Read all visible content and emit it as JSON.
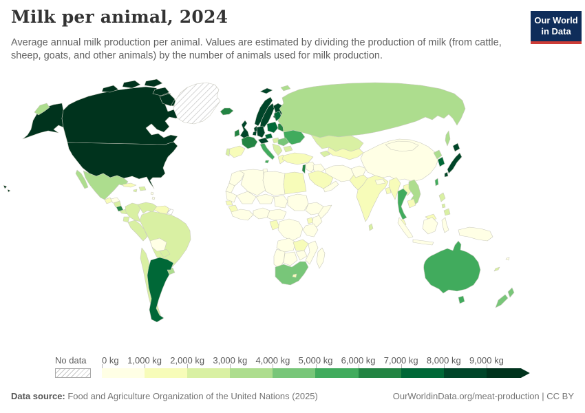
{
  "header": {
    "title": "Milk per animal, 2024",
    "subtitle": "Average annual milk production per animal. Values are estimated by dividing the production of milk (from cattle, sheep, goats, and other animals) by the number of animals used for milk production.",
    "logo": {
      "line1": "Our World",
      "line2": "in Data"
    }
  },
  "legend": {
    "no_data_label": "No data",
    "ticks": [
      "0 kg",
      "1,000 kg",
      "2,000 kg",
      "3,000 kg",
      "4,000 kg",
      "5,000 kg",
      "6,000 kg",
      "7,000 kg",
      "8,000 kg",
      "9,000 kg"
    ],
    "colors": [
      "#ffffe5",
      "#f7fcb9",
      "#d9f0a3",
      "#addd8e",
      "#78c679",
      "#41ab5d",
      "#238443",
      "#006837",
      "#004529"
    ],
    "arrow_color": "#00331d"
  },
  "footer": {
    "source_label": "Data source:",
    "source_text": " Food and Agriculture Organization of the United Nations (2025)",
    "link_text": "OurWorldinData.org/meat-production | CC BY"
  },
  "chart_data": {
    "type": "choropleth",
    "title": "Milk per animal, 2024",
    "unit": "kg",
    "legend_position": "bottom",
    "bins": [
      {
        "range": "0–1,000 kg",
        "color": "#ffffe5"
      },
      {
        "range": "1,000–2,000 kg",
        "color": "#f7fcb9"
      },
      {
        "range": "2,000–3,000 kg",
        "color": "#d9f0a3"
      },
      {
        "range": "3,000–4,000 kg",
        "color": "#addd8e"
      },
      {
        "range": "4,000–5,000 kg",
        "color": "#78c679"
      },
      {
        "range": "5,000–6,000 kg",
        "color": "#41ab5d"
      },
      {
        "range": "6,000–7,000 kg",
        "color": "#238443"
      },
      {
        "range": "7,000–8,000 kg",
        "color": "#006837"
      },
      {
        "range": "8,000–9,000 kg",
        "color": "#004529"
      },
      {
        "range": "> 9,000 kg",
        "color": "#00331d"
      },
      {
        "range": "No data",
        "color": "hatch"
      }
    ],
    "regions": [
      {
        "id": "usa",
        "name": "United States",
        "range": "> 9,000 kg",
        "color": "#00331d"
      },
      {
        "id": "canada",
        "name": "Canada",
        "range": "> 9,000 kg",
        "color": "#00331d"
      },
      {
        "id": "greenland",
        "name": "Greenland",
        "range": "No data",
        "color": "no-data"
      },
      {
        "id": "french-guiana",
        "name": "French Guiana",
        "range": "No data",
        "color": "no-data"
      },
      {
        "id": "uk",
        "name": "United Kingdom",
        "range": "8,000–9,000 kg",
        "color": "#004529"
      },
      {
        "id": "norway",
        "name": "Norway",
        "range": "8,000–9,000 kg",
        "color": "#004529"
      },
      {
        "id": "sweden",
        "name": "Sweden",
        "range": "8,000–9,000 kg",
        "color": "#004529"
      },
      {
        "id": "finland",
        "name": "Finland",
        "range": "8,000–9,000 kg",
        "color": "#004529"
      },
      {
        "id": "denmark",
        "name": "Denmark",
        "range": "8,000–9,000 kg",
        "color": "#004529"
      },
      {
        "id": "germany",
        "name": "Germany",
        "range": "8,000–9,000 kg",
        "color": "#004529"
      },
      {
        "id": "benelux",
        "name": "Belgium & Netherlands",
        "range": "8,000–9,000 kg",
        "color": "#004529"
      },
      {
        "id": "alpine",
        "name": "Switzerland & Austria",
        "range": "8,000–9,000 kg",
        "color": "#004529"
      },
      {
        "id": "japan",
        "name": "Japan",
        "range": "8,000–9,000 kg",
        "color": "#004529"
      },
      {
        "id": "poland",
        "name": "Poland",
        "range": "7,000–8,000 kg",
        "color": "#006837"
      },
      {
        "id": "baltics",
        "name": "Baltic states",
        "range": "7,000–8,000 kg",
        "color": "#006837"
      },
      {
        "id": "czech",
        "name": "Czechia",
        "range": "7,000–8,000 kg",
        "color": "#006837"
      },
      {
        "id": "south-korea",
        "name": "South Korea",
        "range": "7,000–8,000 kg",
        "color": "#006837"
      },
      {
        "id": "argentina",
        "name": "Argentina",
        "range": "7,000–8,000 kg",
        "color": "#006837"
      },
      {
        "id": "france",
        "name": "France",
        "range": "6,000–7,000 kg",
        "color": "#238443"
      },
      {
        "id": "ireland",
        "name": "Ireland",
        "range": "6,000–7,000 kg",
        "color": "#238443"
      },
      {
        "id": "iceland",
        "name": "Iceland",
        "range": "6,000–7,000 kg",
        "color": "#238443"
      },
      {
        "id": "belarus",
        "name": "Belarus",
        "range": "6,000–7,000 kg",
        "color": "#238443"
      },
      {
        "id": "costa-rica",
        "name": "Costa Rica",
        "range": "6,000–7,000 kg",
        "color": "#238443"
      },
      {
        "id": "israel",
        "name": "Israel",
        "range": "6,000–7,000 kg",
        "color": "#238443"
      },
      {
        "id": "italy",
        "name": "Italy",
        "range": "5,000–6,000 kg",
        "color": "#41ab5d"
      },
      {
        "id": "ukraine",
        "name": "Ukraine",
        "range": "5,000–6,000 kg",
        "color": "#41ab5d"
      },
      {
        "id": "thailand",
        "name": "Thailand",
        "range": "5,000–6,000 kg",
        "color": "#41ab5d"
      },
      {
        "id": "taiwan",
        "name": "Taiwan",
        "range": "5,000–6,000 kg",
        "color": "#41ab5d"
      },
      {
        "id": "australia",
        "name": "Australia",
        "range": "5,000–6,000 kg",
        "color": "#41ab5d"
      },
      {
        "id": "romania",
        "name": "Romania",
        "range": "4,000–5,000 kg",
        "color": "#78c679"
      },
      {
        "id": "south-africa",
        "name": "South Africa",
        "range": "4,000–5,000 kg",
        "color": "#78c679"
      },
      {
        "id": "new-zealand",
        "name": "New Zealand",
        "range": "4,000–5,000 kg",
        "color": "#78c679"
      },
      {
        "id": "mexico",
        "name": "Mexico",
        "range": "3,000–4,000 kg",
        "color": "#addd8e"
      },
      {
        "id": "russia",
        "name": "Russia",
        "range": "3,000–4,000 kg",
        "color": "#addd8e"
      },
      {
        "id": "north-korea",
        "name": "North Korea",
        "range": "3,000–4,000 kg",
        "color": "#addd8e"
      },
      {
        "id": "vietnam",
        "name": "Vietnam",
        "range": "3,000–4,000 kg",
        "color": "#addd8e"
      },
      {
        "id": "uruguay",
        "name": "Uruguay",
        "range": "3,000–4,000 kg",
        "color": "#addd8e"
      },
      {
        "id": "kazakhstan",
        "name": "Kazakhstan",
        "range": "2,000–3,000 kg",
        "color": "#d9f0a3"
      },
      {
        "id": "colombia",
        "name": "Colombia",
        "range": "2,000–3,000 kg",
        "color": "#d9f0a3"
      },
      {
        "id": "venezuela",
        "name": "Venezuela",
        "range": "2,000–3,000 kg",
        "color": "#d9f0a3"
      },
      {
        "id": "ecuador",
        "name": "Ecuador",
        "range": "2,000–3,000 kg",
        "color": "#d9f0a3"
      },
      {
        "id": "peru",
        "name": "Peru",
        "range": "2,000–3,000 kg",
        "color": "#d9f0a3"
      },
      {
        "id": "brazil",
        "name": "Brazil",
        "range": "2,000–3,000 kg",
        "color": "#d9f0a3"
      },
      {
        "id": "chile",
        "name": "Chile",
        "range": "2,000–3,000 kg",
        "color": "#d9f0a3"
      },
      {
        "id": "paraguay",
        "name": "Paraguay",
        "range": "2,000–3,000 kg",
        "color": "#d9f0a3"
      },
      {
        "id": "nicaragua",
        "name": "Nicaragua",
        "range": "2,000–3,000 kg",
        "color": "#d9f0a3"
      },
      {
        "id": "panama",
        "name": "Panama",
        "range": "2,000–3,000 kg",
        "color": "#d9f0a3"
      },
      {
        "id": "hispaniola",
        "name": "Dominican Republic & Haiti",
        "range": "2,000–3,000 kg",
        "color": "#d9f0a3"
      },
      {
        "id": "jamaica",
        "name": "Jamaica",
        "range": "2,000–3,000 kg",
        "color": "#d9f0a3"
      },
      {
        "id": "portugal",
        "name": "Portugal",
        "range": "2,000–3,000 kg",
        "color": "#d9f0a3"
      },
      {
        "id": "balkans",
        "name": "Western Balkans",
        "range": "2,000–3,000 kg",
        "color": "#d9f0a3"
      },
      {
        "id": "bulgaria",
        "name": "Bulgaria",
        "range": "2,000–3,000 kg",
        "color": "#d9f0a3"
      },
      {
        "id": "hungary",
        "name": "Hungary",
        "range": "2,000–3,000 kg",
        "color": "#d9f0a3"
      },
      {
        "id": "caucasus",
        "name": "Caucasus",
        "range": "2,000–3,000 kg",
        "color": "#d9f0a3"
      },
      {
        "id": "philippines",
        "name": "Philippines",
        "range": "2,000–3,000 kg",
        "color": "#d9f0a3"
      },
      {
        "id": "sri-lanka",
        "name": "Sri Lanka",
        "range": "2,000–3,000 kg",
        "color": "#d9f0a3"
      },
      {
        "id": "new-caledonia",
        "name": "New Caledonia",
        "range": "2,000–3,000 kg",
        "color": "#d9f0a3"
      },
      {
        "id": "spain",
        "name": "Spain",
        "range": "1,000–2,000 kg",
        "color": "#f7fcb9"
      },
      {
        "id": "greece",
        "name": "Greece",
        "range": "1,000–2,000 kg",
        "color": "#f7fcb9"
      },
      {
        "id": "turkey",
        "name": "Turkey",
        "range": "1,000–2,000 kg",
        "color": "#f7fcb9"
      },
      {
        "id": "egypt",
        "name": "Egypt",
        "range": "1,000–2,000 kg",
        "color": "#f7fcb9"
      },
      {
        "id": "saudi",
        "name": "Saudi Arabia",
        "range": "1,000–2,000 kg",
        "color": "#f7fcb9"
      },
      {
        "id": "central-asia",
        "name": "Central Asia",
        "range": "1,000–2,000 kg",
        "color": "#f7fcb9"
      },
      {
        "id": "pakistan",
        "name": "Pakistan",
        "range": "1,000–2,000 kg",
        "color": "#f7fcb9"
      },
      {
        "id": "india",
        "name": "India",
        "range": "1,000–2,000 kg",
        "color": "#f7fcb9"
      },
      {
        "id": "bangladesh",
        "name": "Bangladesh",
        "range": "1,000–2,000 kg",
        "color": "#f7fcb9"
      },
      {
        "id": "myanmar",
        "name": "Myanmar",
        "range": "1,000–2,000 kg",
        "color": "#f7fcb9"
      },
      {
        "id": "laos",
        "name": "Laos",
        "range": "1,000–2,000 kg",
        "color": "#f7fcb9"
      },
      {
        "id": "cambodia",
        "name": "Cambodia",
        "range": "1,000–2,000 kg",
        "color": "#f7fcb9"
      },
      {
        "id": "malaysia",
        "name": "Malaysia",
        "range": "1,000–2,000 kg",
        "color": "#f7fcb9"
      },
      {
        "id": "cuba",
        "name": "Cuba",
        "range": "1,000–2,000 kg",
        "color": "#f7fcb9"
      },
      {
        "id": "guatemala",
        "name": "Guatemala",
        "range": "1,000–2,000 kg",
        "color": "#f7fcb9"
      },
      {
        "id": "guyana",
        "name": "Guyana & Suriname",
        "range": "1,000–2,000 kg",
        "color": "#f7fcb9"
      },
      {
        "id": "senegal",
        "name": "Senegal",
        "range": "1,000–2,000 kg",
        "color": "#f7fcb9"
      },
      {
        "id": "guinea",
        "name": "Guinea",
        "range": "1,000–2,000 kg",
        "color": "#f7fcb9"
      },
      {
        "id": "gabon",
        "name": "Gabon & Congo",
        "range": "1,000–2,000 kg",
        "color": "#f7fcb9"
      },
      {
        "id": "uganda",
        "name": "Uganda",
        "range": "1,000–2,000 kg",
        "color": "#f7fcb9"
      },
      {
        "id": "zambia",
        "name": "Zambia",
        "range": "1,000–2,000 kg",
        "color": "#f7fcb9"
      },
      {
        "id": "lesotho",
        "name": "Lesotho",
        "range": "1,000–2,000 kg",
        "color": "#f7fcb9"
      },
      {
        "id": "china",
        "name": "China",
        "range": "0–1,000 kg",
        "color": "#ffffe5"
      },
      {
        "id": "mongolia",
        "name": "Mongolia",
        "range": "0–1,000 kg",
        "color": "#ffffe5"
      },
      {
        "id": "indonesia",
        "name": "Indonesia",
        "range": "0–1,000 kg",
        "color": "#ffffe5"
      },
      {
        "id": "papua",
        "name": "Papua New Guinea",
        "range": "0–1,000 kg",
        "color": "#ffffe5"
      },
      {
        "id": "honduras",
        "name": "Honduras",
        "range": "0–1,000 kg",
        "color": "#ffffe5"
      },
      {
        "id": "bolivia",
        "name": "Bolivia",
        "range": "0–1,000 kg",
        "color": "#ffffe5"
      },
      {
        "id": "caribbean",
        "name": "Lesser Antilles",
        "range": "0–1,000 kg",
        "color": "#ffffe5"
      },
      {
        "id": "morocco",
        "name": "Morocco",
        "range": "0–1,000 kg",
        "color": "#ffffe5"
      },
      {
        "id": "western-sahara",
        "name": "Western Sahara",
        "range": "0–1,000 kg",
        "color": "#ffffe5"
      },
      {
        "id": "algeria",
        "name": "Algeria",
        "range": "0–1,000 kg",
        "color": "#ffffe5"
      },
      {
        "id": "tunisia",
        "name": "Tunisia",
        "range": "0–1,000 kg",
        "color": "#ffffe5"
      },
      {
        "id": "libya",
        "name": "Libya",
        "range": "0–1,000 kg",
        "color": "#ffffe5"
      },
      {
        "id": "mauritania",
        "name": "Mauritania",
        "range": "0–1,000 kg",
        "color": "#ffffe5"
      },
      {
        "id": "mali",
        "name": "Mali",
        "range": "0–1,000 kg",
        "color": "#ffffe5"
      },
      {
        "id": "niger",
        "name": "Niger",
        "range": "0–1,000 kg",
        "color": "#ffffe5"
      },
      {
        "id": "chad",
        "name": "Chad",
        "range": "0–1,000 kg",
        "color": "#ffffe5"
      },
      {
        "id": "sudan",
        "name": "Sudan",
        "range": "0–1,000 kg",
        "color": "#ffffe5"
      },
      {
        "id": "west-africa",
        "name": "Ivory Coast & Ghana",
        "range": "0–1,000 kg",
        "color": "#ffffe5"
      },
      {
        "id": "nigeria",
        "name": "Nigeria",
        "range": "0–1,000 kg",
        "color": "#ffffe5"
      },
      {
        "id": "cameroon",
        "name": "Cameroon & CAR",
        "range": "0–1,000 kg",
        "color": "#ffffe5"
      },
      {
        "id": "ethiopia",
        "name": "Ethiopia",
        "range": "0–1,000 kg",
        "color": "#ffffe5"
      },
      {
        "id": "somalia",
        "name": "Somalia",
        "range": "0–1,000 kg",
        "color": "#ffffe5"
      },
      {
        "id": "kenya",
        "name": "Kenya",
        "range": "0–1,000 kg",
        "color": "#ffffe5"
      },
      {
        "id": "drc",
        "name": "Democratic Republic of Congo",
        "range": "0–1,000 kg",
        "color": "#ffffe5"
      },
      {
        "id": "tanzania",
        "name": "Tanzania",
        "range": "0–1,000 kg",
        "color": "#ffffe5"
      },
      {
        "id": "angola",
        "name": "Angola",
        "range": "0–1,000 kg",
        "color": "#ffffe5"
      },
      {
        "id": "zimbabwe",
        "name": "Zimbabwe",
        "range": "0–1,000 kg",
        "color": "#ffffe5"
      },
      {
        "id": "mozambique",
        "name": "Mozambique",
        "range": "0–1,000 kg",
        "color": "#ffffe5"
      },
      {
        "id": "namibia",
        "name": "Namibia",
        "range": "0–1,000 kg",
        "color": "#ffffe5"
      },
      {
        "id": "botswana",
        "name": "Botswana",
        "range": "0–1,000 kg",
        "color": "#ffffe5"
      },
      {
        "id": "madagascar",
        "name": "Madagascar",
        "range": "0–1,000 kg",
        "color": "#ffffe5"
      },
      {
        "id": "iran",
        "name": "Iran",
        "range": "0–1,000 kg",
        "color": "#ffffe5"
      },
      {
        "id": "iraq",
        "name": "Iraq",
        "range": "0–1,000 kg",
        "color": "#ffffe5"
      },
      {
        "id": "levant",
        "name": "Syria & Jordan",
        "range": "0–1,000 kg",
        "color": "#ffffe5"
      },
      {
        "id": "yemen",
        "name": "Yemen & Oman",
        "range": "0–1,000 kg",
        "color": "#ffffe5"
      },
      {
        "id": "afghanistan",
        "name": "Afghanistan",
        "range": "0–1,000 kg",
        "color": "#ffffe5"
      },
      {
        "id": "nepal",
        "name": "Nepal",
        "range": "0–1,000 kg",
        "color": "#ffffe5"
      },
      {
        "id": "fiji",
        "name": "Fiji",
        "range": "0–1,000 kg",
        "color": "#ffffe5"
      }
    ]
  }
}
